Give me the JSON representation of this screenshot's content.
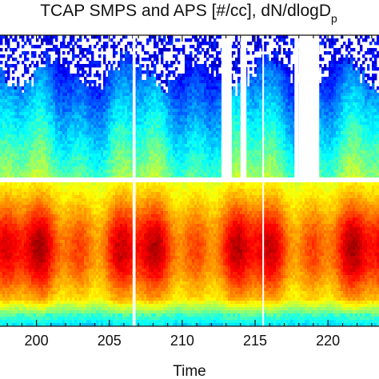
{
  "chart_data": {
    "type": "heatmap",
    "title": "TCAP SMPS and APS [#/cc], dN/dlogD",
    "title_subscript": "p",
    "xlabel": "Time",
    "ylabel": "",
    "xlim": [
      197.5,
      223.5
    ],
    "x_ticks": [
      200,
      205,
      210,
      215,
      220
    ],
    "x_tick_labels": [
      "200",
      "205",
      "210",
      "215",
      "220"
    ],
    "colormap": "jet",
    "color_scale": "log",
    "grid": false,
    "legend": "none",
    "missing_data_gaps": [
      {
        "start": 206.6,
        "end": 206.8,
        "instrument": "both"
      },
      {
        "start": 212.7,
        "end": 213.4,
        "instrument": "upper"
      },
      {
        "start": 214.0,
        "end": 214.4,
        "instrument": "upper"
      },
      {
        "start": 215.5,
        "end": 215.6,
        "instrument": "both"
      },
      {
        "start": 217.7,
        "end": 218.0,
        "instrument": "upper"
      },
      {
        "start": 218.0,
        "end": 219.4,
        "instrument": "upper"
      }
    ],
    "panel_separator": "white band between upper (APS) and lower (SMPS) size ranges"
  }
}
